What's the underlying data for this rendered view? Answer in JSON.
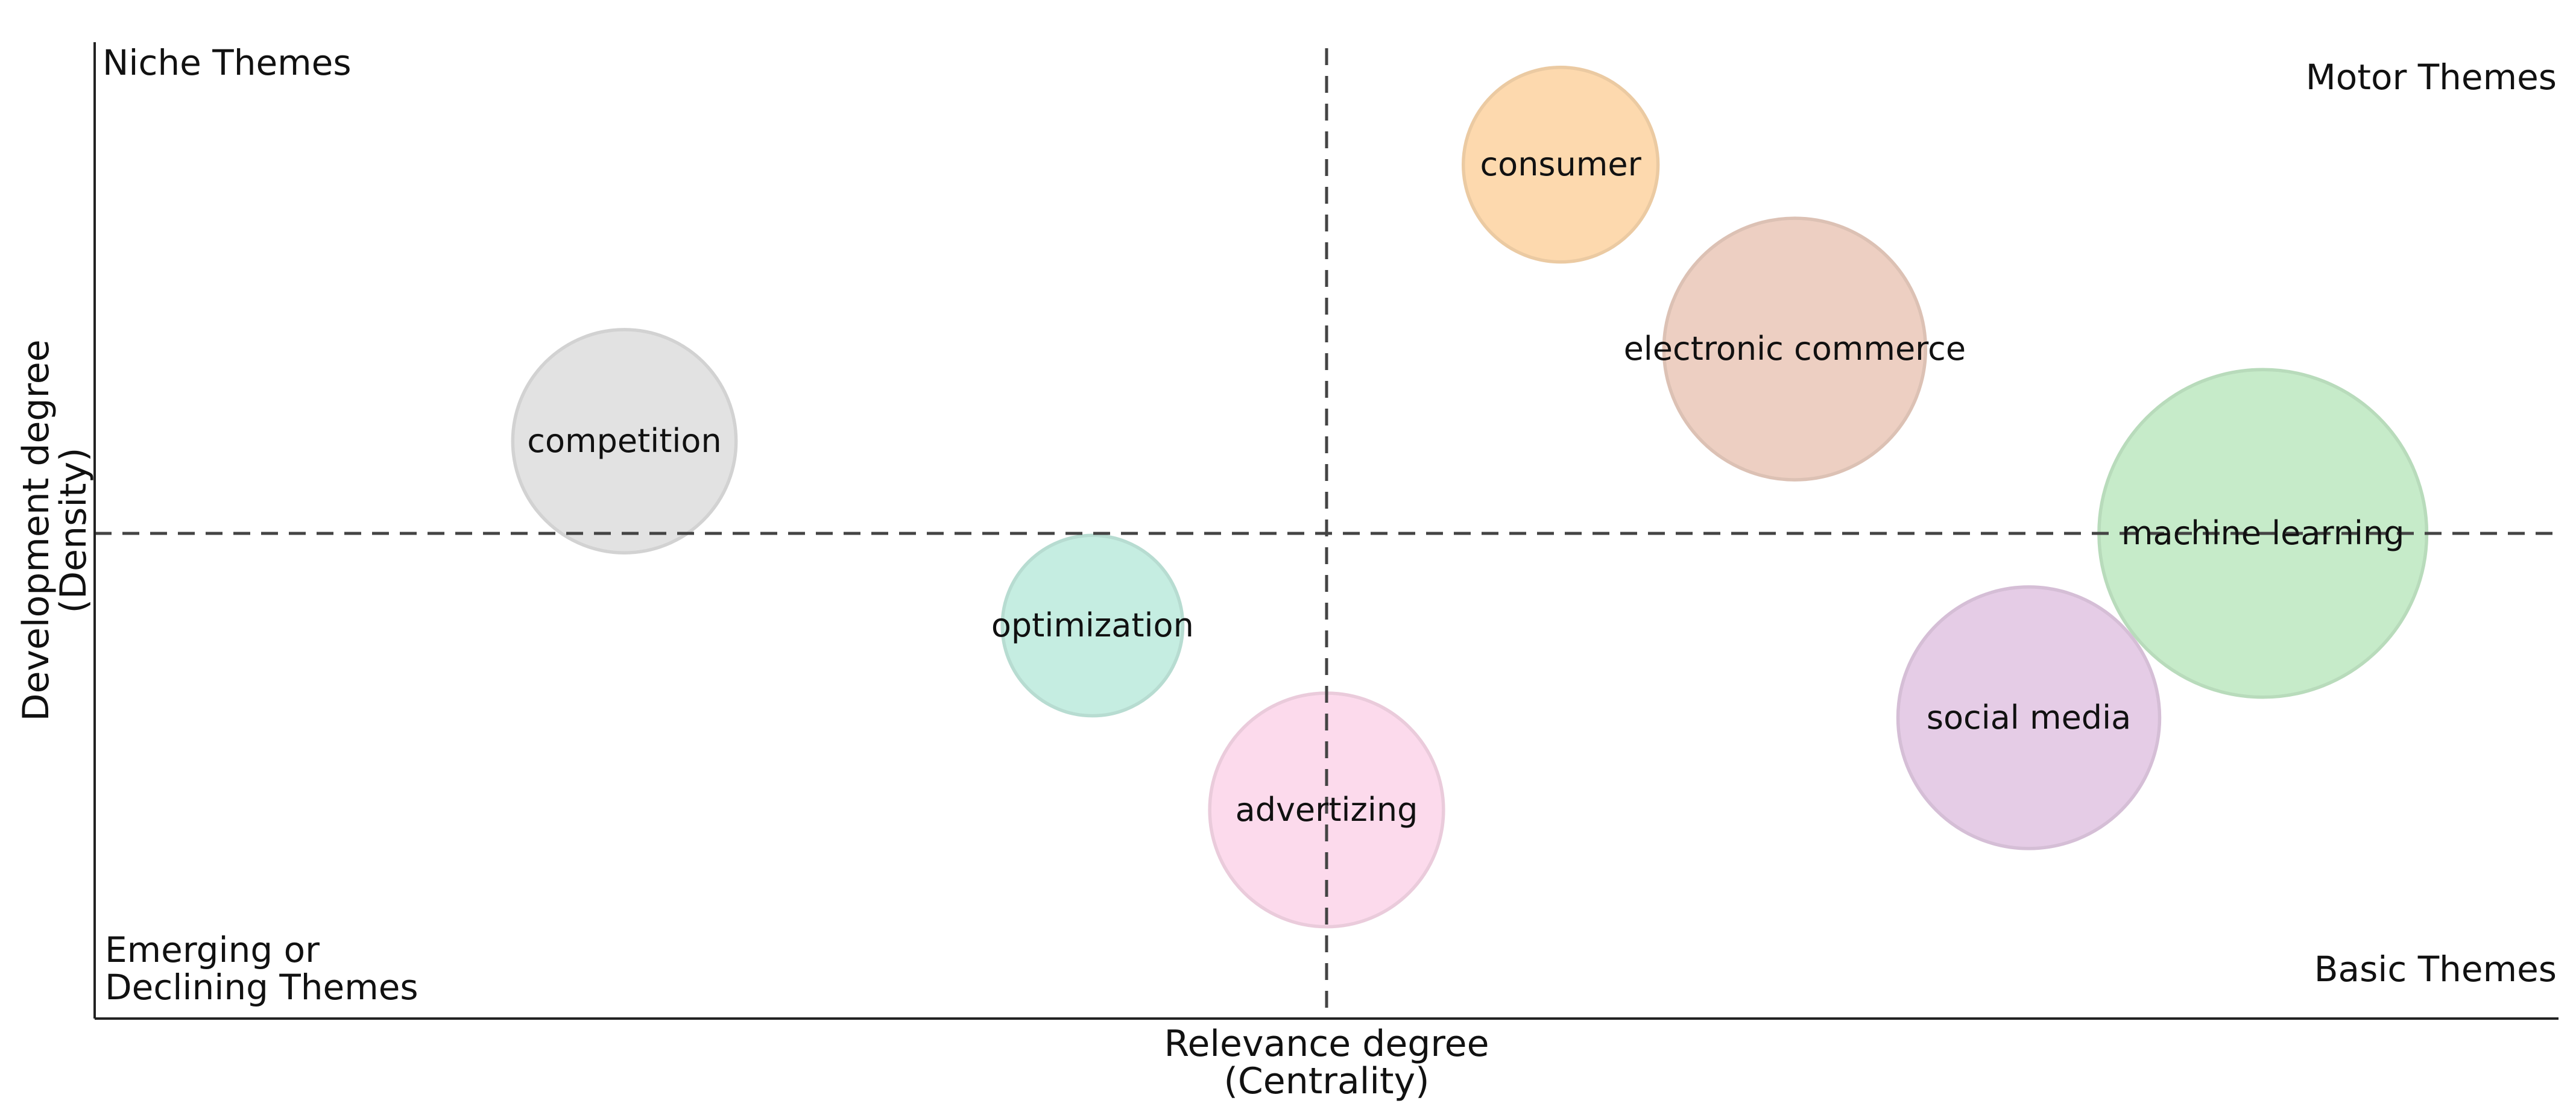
{
  "chart_data": {
    "type": "scatter",
    "subtype": "thematic-map",
    "xlabel": [
      "Relevance degree",
      "(Centrality)"
    ],
    "ylabel": [
      "Development degree",
      "(Density)"
    ],
    "xlim": [
      0,
      1
    ],
    "ylim": [
      0,
      1
    ],
    "reference_lines": {
      "x": 0.5,
      "y": 0.5,
      "style": "dashed"
    },
    "quadrants": {
      "top_left": [
        "Niche Themes"
      ],
      "top_right": [
        "Motor Themes"
      ],
      "bottom_left": [
        "Emerging or",
        "Declining Themes"
      ],
      "bottom_right": [
        "Basic Themes"
      ]
    },
    "points": [
      {
        "label": "consumer",
        "x": 0.595,
        "y": 0.88,
        "size": 0.23,
        "color": "#FDD9AE"
      },
      {
        "label": "electronic commerce",
        "x": 0.69,
        "y": 0.69,
        "size": 0.55,
        "color": "#EDCFC2"
      },
      {
        "label": "competition",
        "x": 0.215,
        "y": 0.595,
        "size": 0.35,
        "color": "#E2E2E2"
      },
      {
        "label": "machine learning",
        "x": 0.88,
        "y": 0.5,
        "size": 1.0,
        "color": "#C6EBC9"
      },
      {
        "label": "optimization",
        "x": 0.405,
        "y": 0.405,
        "size": 0.18,
        "color": "#C5EDE1"
      },
      {
        "label": "social media",
        "x": 0.785,
        "y": 0.31,
        "size": 0.55,
        "color": "#E5CCE6"
      },
      {
        "label": "advertizing",
        "x": 0.5,
        "y": 0.215,
        "size": 0.4,
        "color": "#FCDAEC"
      }
    ]
  }
}
